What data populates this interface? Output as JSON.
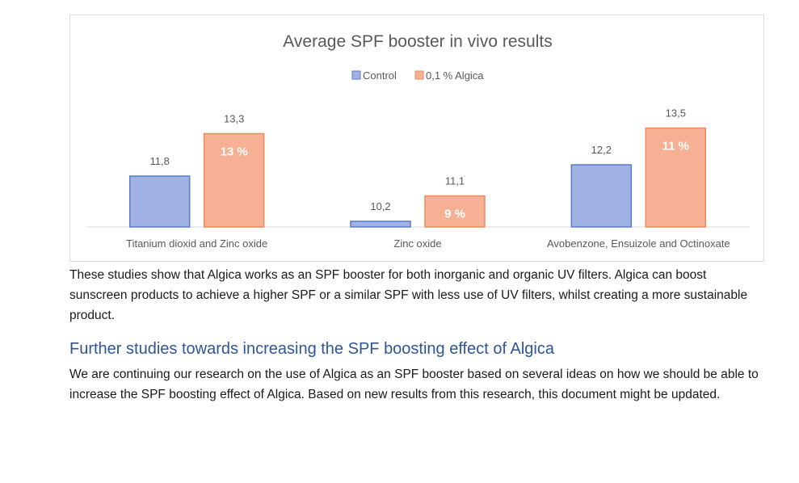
{
  "chart_data": {
    "type": "bar",
    "title": "Average SPF booster in vivo results",
    "categories": [
      "Titanium dioxid and Zinc oxide",
      "Zinc oxide",
      "Avobenzone, Ensuizole and Octinoxate"
    ],
    "series": [
      {
        "name": "Control",
        "values": [
          11.8,
          10.2,
          12.2
        ],
        "labels": [
          "11,8",
          "10,2",
          "12,2"
        ],
        "color": "#8fa3d9"
      },
      {
        "name": "0,1 % Algica",
        "values": [
          13.3,
          11.1,
          13.5
        ],
        "labels": [
          "13,3",
          "11,1",
          "13,5"
        ],
        "color": "#f4a582"
      }
    ],
    "annotations": [
      "13 %",
      "9 %",
      "11 %"
    ],
    "ylim": [
      10,
      14
    ],
    "grid": false,
    "legend": "top-center",
    "xlabel": "",
    "ylabel": ""
  },
  "colors": {
    "control_fill": "#9fb2e3",
    "control_stroke": "#5b7bc7",
    "algica_fill": "#f6b093",
    "algica_stroke": "#ed8b5d",
    "heading": "#2f5597"
  },
  "text": {
    "paragraph1": "These studies show that Algica works as an SPF booster for both inorganic and organic UV filters. Algica can boost sunscreen products to achieve a higher SPF or a similar SPF with less use of UV filters, whilst creating a more sustainable product.",
    "heading2": "Further studies towards increasing the SPF boosting effect of Algica",
    "paragraph2": "We are continuing our research on the use of Algica as an SPF booster based on several ideas on how we should be able to increase the SPF boosting effect of Algica. Based on new results from this research, this document might be updated."
  }
}
